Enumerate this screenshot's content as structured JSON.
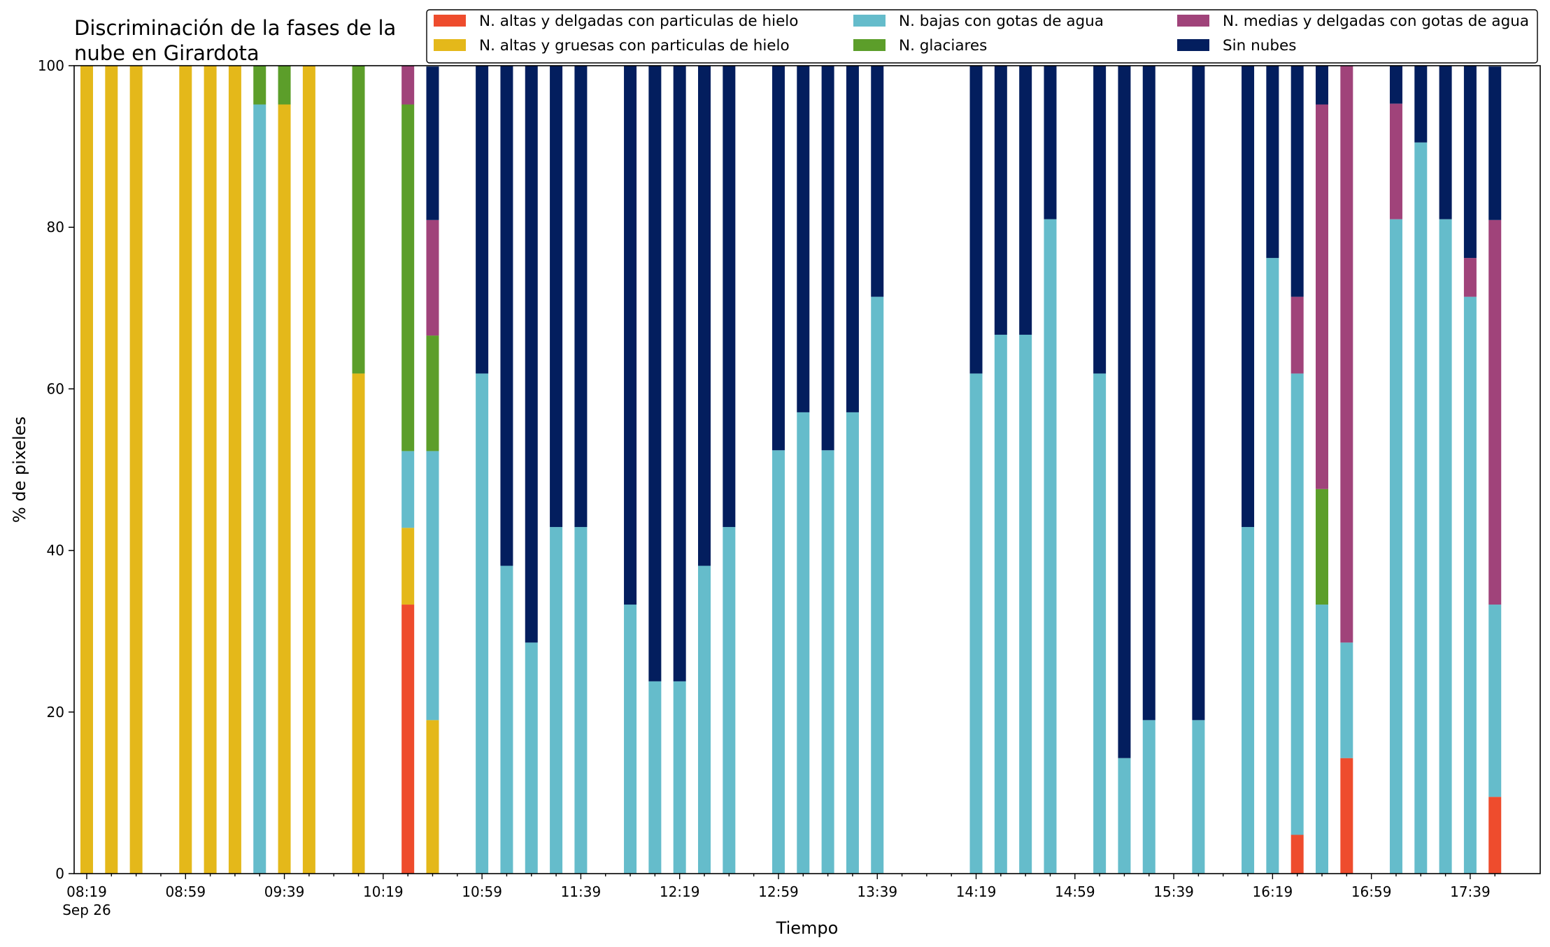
{
  "chart_data": {
    "type": "bar",
    "stacked": true,
    "title": "Discriminación de la fases de la nube en Girardota",
    "title_lines": [
      "Discriminación de la fases de la",
      "nube en Girardota"
    ],
    "xlabel": "Tiempo",
    "ylabel": "% de pixeles",
    "ylim": [
      0,
      100
    ],
    "yticks": [
      0,
      20,
      40,
      60,
      80,
      100
    ],
    "x_tick_labels": [
      "08:19",
      "08:59",
      "09:39",
      "10:19",
      "10:59",
      "11:39",
      "12:19",
      "12:59",
      "13:39",
      "14:19",
      "14:59",
      "15:39",
      "16:19",
      "16:59",
      "17:39"
    ],
    "x_tick_sublabel": "Sep 26",
    "x_start": "08:19",
    "x_interval_minutes": 10,
    "grid": false,
    "legend_position": "top",
    "categories": [
      "08:19",
      "08:29",
      "08:39",
      "08:49",
      "08:59",
      "09:09",
      "09:19",
      "09:29",
      "09:39",
      "09:49",
      "09:59",
      "10:09",
      "10:19",
      "10:29",
      "10:39",
      "10:49",
      "10:59",
      "11:09",
      "11:19",
      "11:29",
      "11:39",
      "11:49",
      "11:59",
      "12:09",
      "12:19",
      "12:29",
      "12:39",
      "12:49",
      "12:59",
      "13:09",
      "13:19",
      "13:29",
      "13:39",
      "13:49",
      "13:59",
      "14:09",
      "14:19",
      "14:29",
      "14:39",
      "14:49",
      "14:59",
      "15:09",
      "15:19",
      "15:29",
      "15:39",
      "15:49",
      "15:59",
      "16:09",
      "16:19",
      "16:29",
      "16:39",
      "16:49",
      "16:59",
      "17:09",
      "17:19",
      "17:29",
      "17:39",
      "17:49"
    ],
    "series": [
      {
        "name": "N. altas y delgadas con particulas de hielo",
        "color": "#ee4c2d",
        "values": [
          0,
          0,
          0,
          0,
          0,
          0,
          0,
          0,
          0,
          0,
          0,
          0,
          0,
          33.3,
          0,
          0,
          0,
          0,
          0,
          0,
          0,
          0,
          0,
          0,
          0,
          0,
          0,
          0,
          0,
          0,
          0,
          0,
          0,
          0,
          0,
          0,
          0,
          0,
          0,
          0,
          0,
          0,
          0,
          0,
          0,
          0,
          0,
          0,
          0,
          4.8,
          0,
          14.3,
          0,
          0,
          0,
          0,
          0,
          9.5
        ]
      },
      {
        "name": "N. altas y gruesas con particulas de hielo",
        "color": "#e4b81a",
        "values": [
          100,
          100,
          100,
          0,
          100,
          100,
          100,
          0,
          95.2,
          100,
          0,
          61.9,
          0,
          9.5,
          19,
          0,
          0,
          0,
          0,
          0,
          0,
          0,
          0,
          0,
          0,
          0,
          0,
          0,
          0,
          0,
          0,
          0,
          0,
          0,
          0,
          0,
          0,
          0,
          0,
          0,
          0,
          0,
          0,
          0,
          0,
          0,
          0,
          0,
          0,
          0,
          0,
          0,
          0,
          0,
          0,
          0,
          0,
          0
        ]
      },
      {
        "name": "N. bajas con gotas de agua",
        "color": "#65bccb",
        "values": [
          0,
          0,
          0,
          0,
          0,
          0,
          0,
          95.2,
          0,
          0,
          0,
          0,
          0,
          9.5,
          33.3,
          0,
          61.9,
          38.1,
          28.6,
          42.9,
          42.9,
          0,
          33.3,
          23.8,
          23.8,
          38.1,
          42.9,
          0,
          52.4,
          57.1,
          52.4,
          57.1,
          71.4,
          0,
          0,
          0,
          61.9,
          66.7,
          66.7,
          81,
          0,
          61.9,
          14.3,
          19,
          0,
          19,
          0,
          42.9,
          76.2,
          57.1,
          33.3,
          14.3,
          0,
          81,
          90.5,
          81,
          71.4,
          23.8
        ]
      },
      {
        "name": "N. glaciares",
        "color": "#5c9e2a",
        "values": [
          0,
          0,
          0,
          0,
          0,
          0,
          0,
          4.8,
          4.8,
          0,
          0,
          38.1,
          0,
          42.9,
          14.3,
          0,
          0,
          0,
          0,
          0,
          0,
          0,
          0,
          0,
          0,
          0,
          0,
          0,
          0,
          0,
          0,
          0,
          0,
          0,
          0,
          0,
          0,
          0,
          0,
          0,
          0,
          0,
          0,
          0,
          0,
          0,
          0,
          0,
          0,
          0,
          14.3,
          0,
          0,
          0,
          0,
          0,
          0,
          0
        ]
      },
      {
        "name": "N. medias y delgadas con gotas de agua",
        "color": "#a0437a",
        "values": [
          0,
          0,
          0,
          0,
          0,
          0,
          0,
          0,
          0,
          0,
          0,
          0,
          0,
          4.8,
          14.3,
          0,
          0,
          0,
          0,
          0,
          0,
          0,
          0,
          0,
          0,
          0,
          0,
          0,
          0,
          0,
          0,
          0,
          0,
          0,
          0,
          0,
          0,
          0,
          0,
          0,
          0,
          0,
          0,
          0,
          0,
          0,
          0,
          0,
          0,
          9.5,
          47.6,
          71.4,
          0,
          14.3,
          0,
          0,
          4.8,
          47.6
        ]
      },
      {
        "name": "Sin nubes",
        "color": "#031e5e",
        "values": [
          0,
          0,
          0,
          0,
          0,
          0,
          0,
          0,
          0,
          0,
          0,
          0,
          0,
          0,
          19,
          0,
          38.1,
          61.9,
          71.4,
          57.1,
          57.1,
          0,
          66.7,
          76.2,
          76.2,
          61.9,
          57.1,
          0,
          47.6,
          42.9,
          47.6,
          42.9,
          28.6,
          0,
          0,
          0,
          38.1,
          33.3,
          33.3,
          19,
          0,
          38.1,
          85.7,
          81,
          0,
          81,
          0,
          57.1,
          23.8,
          28.6,
          4.8,
          0,
          0,
          4.8,
          9.5,
          19,
          23.8,
          19
        ]
      }
    ]
  }
}
